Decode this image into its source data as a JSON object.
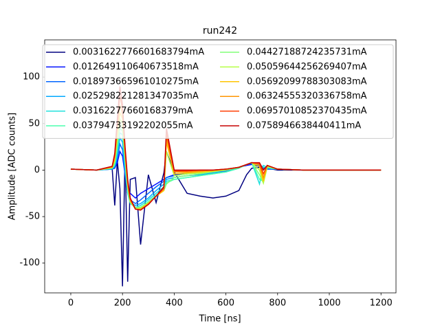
{
  "chart_data": {
    "type": "line",
    "title": "run242",
    "xlabel": "Time [ns]",
    "ylabel": "Amplitude [ADC counts]",
    "x": [
      0,
      100,
      160,
      170,
      180,
      190,
      200,
      210,
      220,
      230,
      250,
      270,
      300,
      330,
      360,
      370,
      400,
      450,
      500,
      550,
      600,
      650,
      680,
      700,
      730,
      745,
      760,
      800,
      900,
      1000,
      1100,
      1200
    ],
    "series": [
      {
        "name": "0.0031622776601683794mA",
        "color": "#000080",
        "values": [
          1,
          0,
          2,
          -38,
          10,
          -20,
          -125,
          20,
          -120,
          -10,
          -8,
          -80,
          -5,
          -35,
          -3,
          20,
          -2,
          -25,
          -28,
          -30,
          -28,
          -22,
          -5,
          2,
          3,
          1,
          2,
          0,
          0,
          0,
          0,
          0
        ]
      },
      {
        "name": "0.012649110640673518mA",
        "color": "#0010ff",
        "values": [
          1,
          0,
          1,
          2,
          8,
          20,
          15,
          -5,
          -20,
          -25,
          -30,
          -25,
          -20,
          -15,
          -10,
          -8,
          -5,
          -3,
          -2,
          -1,
          0,
          3,
          5,
          6,
          4,
          2,
          1,
          1,
          0,
          0,
          0,
          0
        ]
      },
      {
        "name": "0.018973665961010275mA",
        "color": "#0064ff",
        "values": [
          1,
          0,
          1,
          3,
          12,
          28,
          22,
          -5,
          -25,
          -32,
          -36,
          -32,
          -25,
          -18,
          -12,
          -8,
          -6,
          -4,
          -3,
          -2,
          -1,
          3,
          6,
          7,
          5,
          2,
          1,
          1,
          0,
          0,
          0,
          0
        ]
      },
      {
        "name": "0.025298221281347035mA",
        "color": "#00a8ff",
        "values": [
          1,
          0,
          1,
          4,
          15,
          35,
          30,
          0,
          -25,
          -35,
          -38,
          -36,
          -30,
          -22,
          -15,
          -10,
          -8,
          -6,
          -5,
          -3,
          -2,
          2,
          6,
          8,
          6,
          3,
          2,
          1,
          0,
          0,
          0,
          0
        ]
      },
      {
        "name": "0.03162277660168379mA",
        "color": "#1ce0db",
        "values": [
          1,
          0,
          2,
          5,
          20,
          40,
          38,
          5,
          -25,
          -36,
          -40,
          -38,
          -32,
          -25,
          -18,
          -12,
          -10,
          -8,
          -6,
          -4,
          -2,
          2,
          6,
          8,
          -15,
          5,
          3,
          1,
          0,
          0,
          0,
          0
        ]
      },
      {
        "name": "0.03794733192202055mA",
        "color": "#4affad",
        "values": [
          1,
          0,
          2,
          6,
          25,
          45,
          42,
          10,
          -22,
          -35,
          -40,
          -40,
          -34,
          -27,
          -20,
          -14,
          -10,
          -8,
          -6,
          -4,
          -2,
          2,
          6,
          8,
          -10,
          -12,
          3,
          1,
          0,
          0,
          0,
          0
        ]
      },
      {
        "name": "0.04427188724235731mA",
        "color": "#80ff76",
        "values": [
          1,
          0,
          2,
          8,
          30,
          50,
          46,
          12,
          -20,
          -35,
          -41,
          -40,
          -35,
          -28,
          -22,
          -15,
          -8,
          -6,
          -4,
          -2,
          0,
          3,
          6,
          8,
          -5,
          -14,
          3,
          1,
          0,
          0,
          0,
          0
        ]
      },
      {
        "name": "0.05059644256269407mA",
        "color": "#b4ff43",
        "values": [
          1,
          0,
          3,
          10,
          35,
          55,
          50,
          15,
          -18,
          -34,
          -41,
          -41,
          -35,
          -28,
          -22,
          20,
          -6,
          -4,
          -3,
          -1,
          0,
          3,
          6,
          8,
          0,
          -14,
          4,
          1,
          0,
          0,
          0,
          0
        ]
      },
      {
        "name": "0.05692099788303083mA",
        "color": "#ffc400",
        "values": [
          1,
          0,
          3,
          12,
          40,
          62,
          55,
          18,
          -16,
          -33,
          -42,
          -42,
          -36,
          -28,
          -22,
          30,
          -4,
          -3,
          -2,
          -1,
          1,
          3,
          6,
          8,
          4,
          -12,
          5,
          1,
          0,
          0,
          0,
          0
        ]
      },
      {
        "name": "0.06324555320336758mA",
        "color": "#ff9400",
        "values": [
          1,
          0,
          3,
          14,
          45,
          70,
          60,
          20,
          -14,
          -32,
          -42,
          -42,
          -36,
          -28,
          -20,
          35,
          -2,
          -2,
          -1,
          0,
          1,
          3,
          6,
          8,
          6,
          -8,
          5,
          1,
          0,
          0,
          0,
          0
        ]
      },
      {
        "name": "0.06957010852370435mA",
        "color": "#ff3c00",
        "values": [
          1,
          0,
          4,
          16,
          50,
          80,
          65,
          22,
          -12,
          -31,
          -42,
          -43,
          -37,
          -28,
          -20,
          40,
          -1,
          -1,
          0,
          0,
          1,
          3,
          6,
          8,
          7,
          -4,
          5,
          1,
          0,
          0,
          0,
          0
        ]
      },
      {
        "name": "0.0758946638440411mA",
        "color": "#c70000",
        "values": [
          1,
          0,
          4,
          18,
          55,
          90,
          70,
          25,
          -10,
          -30,
          -42,
          -43,
          -37,
          -28,
          -18,
          45,
          0,
          0,
          0,
          0,
          1,
          3,
          6,
          8,
          8,
          0,
          5,
          1,
          0,
          0,
          0,
          0
        ]
      }
    ],
    "xlim": [
      -101,
      1258
    ],
    "xticks": [
      0,
      200,
      400,
      600,
      800,
      1000,
      1200
    ],
    "ylim": [
      -132,
      140
    ],
    "yticks": [
      -100,
      -50,
      0,
      50,
      100
    ],
    "legend": "upper left",
    "legend_columns": 2
  }
}
